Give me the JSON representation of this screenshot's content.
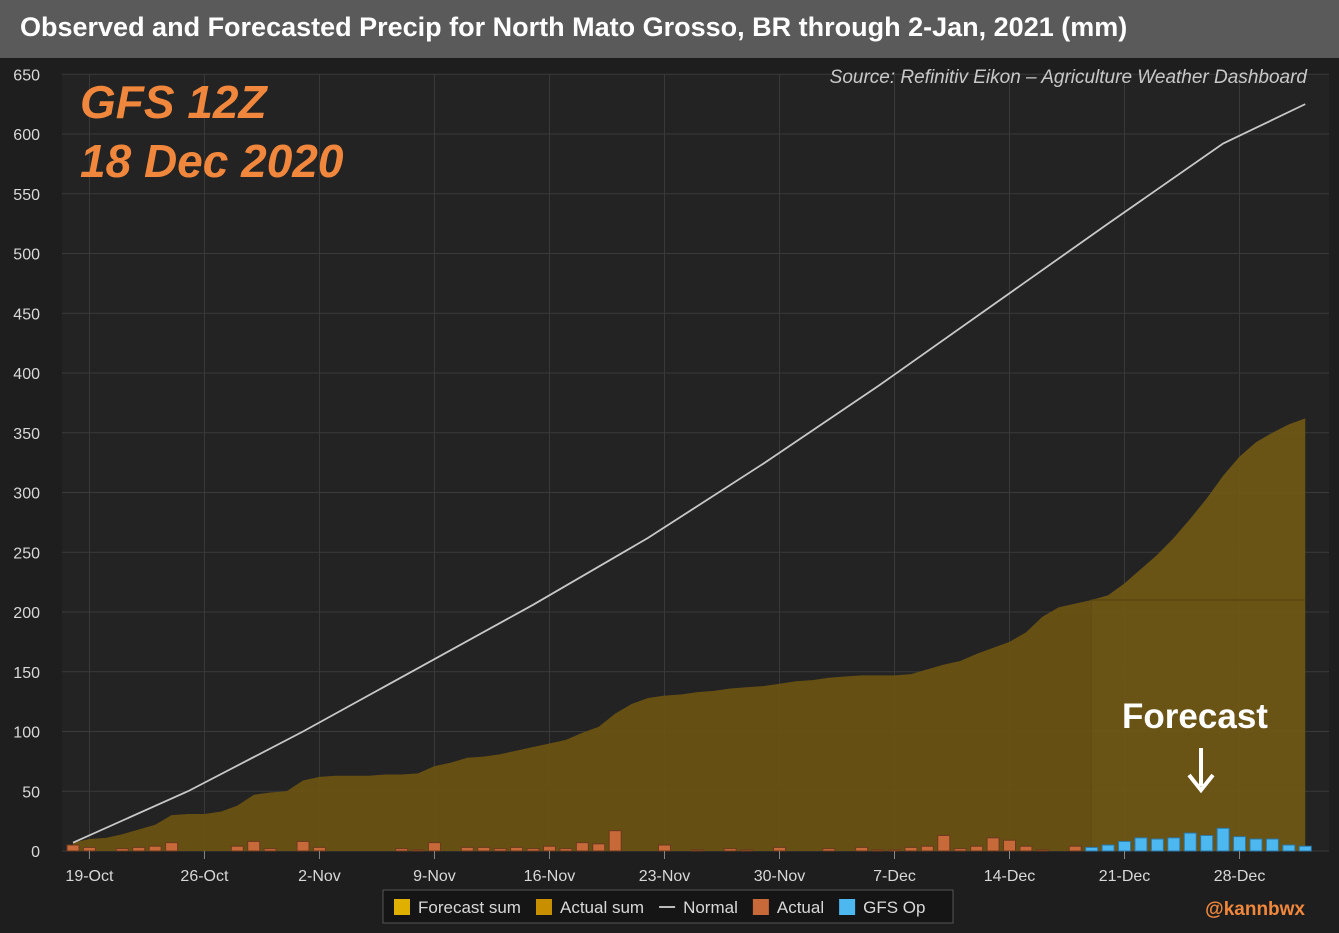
{
  "chart_data": {
    "type": "area",
    "title": "Observed and Forecasted Precip for North Mato Grosso, BR through 2-Jan, 2021 (mm)",
    "source": "Source: Refinitiv Eikon – Agriculture Weather Dashboard",
    "run_label": "GFS 12Z",
    "run_date": "18 Dec 2020",
    "forecast_annotation": "Forecast",
    "credit": "@kannbwx",
    "xlabel": "",
    "ylabel": "",
    "x_ticks": [
      "19-Oct",
      "26-Oct",
      "2-Nov",
      "9-Nov",
      "16-Nov",
      "23-Nov",
      "30-Nov",
      "7-Dec",
      "14-Dec",
      "21-Dec",
      "28-Dec"
    ],
    "y_ticks": [
      0,
      50,
      100,
      150,
      200,
      250,
      300,
      350,
      400,
      450,
      500,
      550,
      600,
      650
    ],
    "ylim": [
      0,
      650
    ],
    "x_start": "18-Oct",
    "x_end": "2-Jan",
    "grid": true,
    "legend_position": "bottom",
    "legend": [
      {
        "label": "Forecast sum",
        "color": "#e0b000",
        "kind": "box"
      },
      {
        "label": "Actual sum",
        "color": "#c89000",
        "kind": "box"
      },
      {
        "label": "Normal",
        "color": "#bbbbbb",
        "kind": "line"
      },
      {
        "label": "Actual",
        "color": "#c8693a",
        "kind": "box"
      },
      {
        "label": "GFS Op",
        "color": "#4db8f0",
        "kind": "box"
      }
    ],
    "series": [
      {
        "name": "Normal",
        "type": "line",
        "color": "#c8c8c8",
        "x_day": [
          0,
          7,
          14,
          21,
          28,
          35,
          42,
          49,
          56,
          63,
          70,
          75
        ],
        "y": [
          7,
          50,
          100,
          153,
          206,
          262,
          324,
          389,
          457,
          525,
          592,
          625
        ]
      },
      {
        "name": "Actual sum",
        "type": "area",
        "color": "#6a5212",
        "x_day": [
          0,
          1,
          2,
          3,
          4,
          5,
          6,
          7,
          8,
          9,
          10,
          11,
          12,
          13,
          14,
          15,
          16,
          17,
          18,
          19,
          20,
          21,
          22,
          23,
          24,
          25,
          26,
          27,
          28,
          29,
          30,
          31,
          32,
          33,
          34,
          35,
          36,
          37,
          38,
          39,
          40,
          41,
          42,
          43,
          44,
          45,
          46,
          47,
          48,
          49,
          50,
          51,
          52,
          53,
          54,
          55,
          56,
          57,
          58,
          59,
          60,
          61,
          62
        ],
        "y": [
          7,
          10,
          11,
          14,
          18,
          22,
          30,
          31,
          31,
          33,
          38,
          47,
          49,
          50,
          59,
          62,
          63,
          63,
          63,
          64,
          64,
          65,
          71,
          74,
          78,
          79,
          81,
          84,
          87,
          90,
          93,
          99,
          104,
          115,
          123,
          128,
          130,
          131,
          133,
          134,
          136,
          137,
          138,
          140,
          142,
          143,
          145,
          146,
          147,
          147,
          147,
          148,
          152,
          156,
          159,
          165,
          170,
          175,
          183,
          196,
          204,
          207,
          210
        ]
      },
      {
        "name": "Forecast sum",
        "type": "area",
        "color": "#6e5615",
        "x_day": [
          62,
          63,
          64,
          65,
          66,
          67,
          68,
          69,
          70,
          71,
          72,
          73,
          74,
          75
        ],
        "y": [
          210,
          214,
          224,
          236,
          248,
          262,
          278,
          295,
          314,
          330,
          342,
          350,
          357,
          362
        ]
      },
      {
        "name": "Actual",
        "type": "bar",
        "color": "#c8693a",
        "x_day": [
          0,
          1,
          3,
          4,
          5,
          6,
          10,
          11,
          12,
          14,
          15,
          20,
          21,
          22,
          24,
          25,
          26,
          27,
          28,
          29,
          30,
          31,
          32,
          33,
          36,
          38,
          40,
          41,
          43,
          46,
          48,
          49,
          50,
          51,
          52,
          53,
          54,
          55,
          56,
          57,
          58,
          59,
          61,
          62,
          64
        ],
        "y": [
          5,
          3,
          2,
          3,
          4,
          7,
          4,
          8,
          2,
          8,
          3,
          2,
          1,
          7,
          3,
          3,
          2,
          3,
          2,
          4,
          2,
          7,
          6,
          17,
          5,
          1,
          2,
          1,
          3,
          2,
          3,
          1,
          1,
          3,
          4,
          13,
          2,
          4,
          11,
          9,
          4,
          1,
          4,
          1,
          2
        ]
      },
      {
        "name": "GFS Op",
        "type": "bar",
        "color": "#4db8f0",
        "x_day": [
          62,
          63,
          64,
          65,
          66,
          67,
          68,
          69,
          70,
          71,
          72,
          73,
          74,
          75
        ],
        "y": [
          3,
          5,
          8,
          11,
          10,
          11,
          15,
          13,
          19,
          12,
          10,
          10,
          5,
          4
        ]
      }
    ]
  }
}
